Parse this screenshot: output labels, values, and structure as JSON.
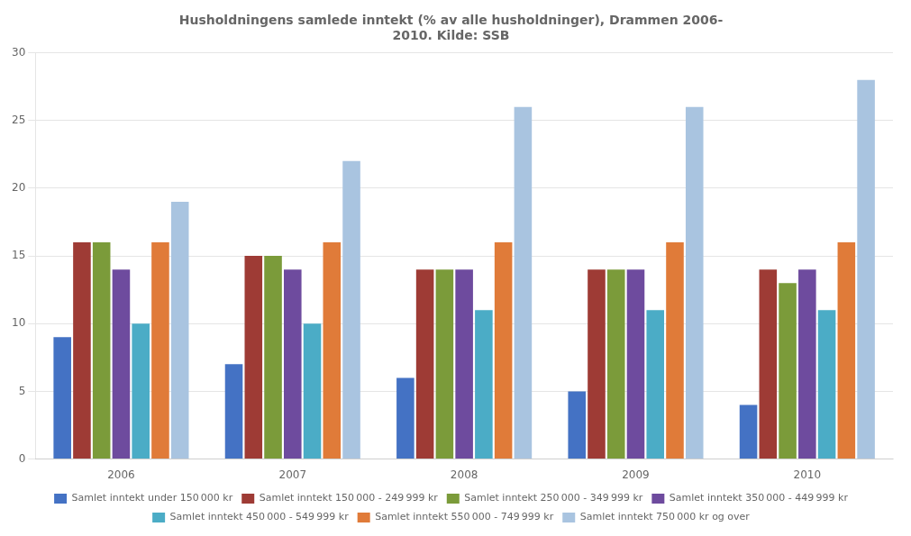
{
  "chart_data": {
    "type": "bar",
    "title": "Husholdningens samlede inntekt (% av alle husholdninger), Drammen 2006-\n2010. Kilde: SSB",
    "categories": [
      "2006",
      "2007",
      "2008",
      "2009",
      "2010"
    ],
    "series": [
      {
        "name": "Samlet inntekt under 150 000 kr",
        "color": "#4472C4",
        "values": [
          9,
          7,
          6,
          5,
          4
        ]
      },
      {
        "name": "Samlet inntekt 150 000 - 249 999 kr",
        "color": "#9E3B35",
        "values": [
          16,
          15,
          14,
          14,
          14
        ]
      },
      {
        "name": "Samlet inntekt 250 000 - 349 999 kr",
        "color": "#7B9B3A",
        "values": [
          16,
          15,
          14,
          14,
          13
        ]
      },
      {
        "name": "Samlet inntekt 350 000 - 449 999 kr",
        "color": "#6E4B9E",
        "values": [
          14,
          14,
          14,
          14,
          14
        ]
      },
      {
        "name": "Samlet inntekt 450 000 - 549 999 kr",
        "color": "#4BACC6",
        "values": [
          10,
          10,
          11,
          11,
          11
        ]
      },
      {
        "name": "Samlet inntekt 550 000 - 749 999 kr",
        "color": "#E07B39",
        "values": [
          16,
          16,
          16,
          16,
          16
        ]
      },
      {
        "name": "Samlet inntekt 750 000 kr og over",
        "color": "#A9C4E0",
        "values": [
          19,
          22,
          26,
          26,
          28
        ]
      }
    ],
    "ylim": [
      0,
      30
    ],
    "yticks": [
      0,
      5,
      10,
      15,
      20,
      25,
      30
    ],
    "grid": true,
    "legend": "bottom"
  }
}
